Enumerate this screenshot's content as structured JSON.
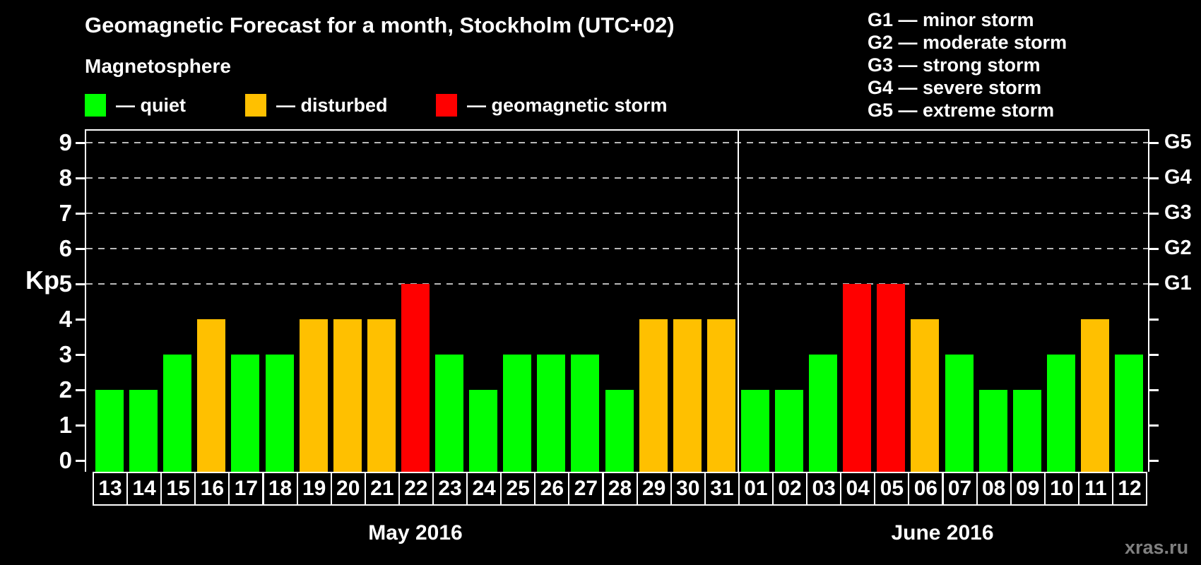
{
  "title": "Geomagnetic Forecast for a month, Stockholm (UTC+02)",
  "subtitle": "Magnetosphere",
  "legend": {
    "items": [
      {
        "key": "quiet",
        "label": "— quiet",
        "color": "#00FF00",
        "x": 120
      },
      {
        "key": "disturbed",
        "label": "— disturbed",
        "color": "#FFC000",
        "x": 347
      },
      {
        "key": "storm",
        "label": "— geomagnetic storm",
        "color": "#FF0000",
        "x": 617
      }
    ]
  },
  "storm_scale_legend": [
    "G1 — minor storm",
    "G2 — moderate storm",
    "G3 — strong storm",
    "G4 — severe storm",
    "G5 — extreme storm"
  ],
  "y_axis": {
    "label": "Kp",
    "ticks": [
      0,
      1,
      2,
      3,
      4,
      5,
      6,
      7,
      8,
      9
    ]
  },
  "right_axis": {
    "labels": [
      {
        "text": "G1",
        "kp": 5
      },
      {
        "text": "G2",
        "kp": 6
      },
      {
        "text": "G3",
        "kp": 7
      },
      {
        "text": "G4",
        "kp": 8
      },
      {
        "text": "G5",
        "kp": 9
      }
    ]
  },
  "watermark": "xras.ru",
  "chart_data": {
    "type": "bar",
    "title": "Geomagnetic Forecast for a month, Stockholm (UTC+02)",
    "ylabel": "Kp",
    "ylim": [
      0,
      9
    ],
    "gridlines_at_kp": [
      5,
      6,
      7,
      8,
      9
    ],
    "legend_position": "top-left",
    "colors": {
      "quiet": "#00FF00",
      "disturbed": "#FFC000",
      "storm": "#FF0000"
    },
    "months": [
      {
        "label": "May 2016",
        "days": [
          {
            "day": "13",
            "kp": 2,
            "status": "quiet"
          },
          {
            "day": "14",
            "kp": 2,
            "status": "quiet"
          },
          {
            "day": "15",
            "kp": 3,
            "status": "quiet"
          },
          {
            "day": "16",
            "kp": 4,
            "status": "disturbed"
          },
          {
            "day": "17",
            "kp": 3,
            "status": "quiet"
          },
          {
            "day": "18",
            "kp": 3,
            "status": "quiet"
          },
          {
            "day": "19",
            "kp": 4,
            "status": "disturbed"
          },
          {
            "day": "20",
            "kp": 4,
            "status": "disturbed"
          },
          {
            "day": "21",
            "kp": 4,
            "status": "disturbed"
          },
          {
            "day": "22",
            "kp": 5,
            "status": "storm"
          },
          {
            "day": "23",
            "kp": 3,
            "status": "quiet"
          },
          {
            "day": "24",
            "kp": 2,
            "status": "quiet"
          },
          {
            "day": "25",
            "kp": 3,
            "status": "quiet"
          },
          {
            "day": "26",
            "kp": 3,
            "status": "quiet"
          },
          {
            "day": "27",
            "kp": 3,
            "status": "quiet"
          },
          {
            "day": "28",
            "kp": 2,
            "status": "quiet"
          },
          {
            "day": "29",
            "kp": 4,
            "status": "disturbed"
          },
          {
            "day": "30",
            "kp": 4,
            "status": "disturbed"
          },
          {
            "day": "31",
            "kp": 4,
            "status": "disturbed"
          }
        ]
      },
      {
        "label": "June 2016",
        "days": [
          {
            "day": "01",
            "kp": 2,
            "status": "quiet"
          },
          {
            "day": "02",
            "kp": 2,
            "status": "quiet"
          },
          {
            "day": "03",
            "kp": 3,
            "status": "quiet"
          },
          {
            "day": "04",
            "kp": 5,
            "status": "storm"
          },
          {
            "day": "05",
            "kp": 5,
            "status": "storm"
          },
          {
            "day": "06",
            "kp": 4,
            "status": "disturbed"
          },
          {
            "day": "07",
            "kp": 3,
            "status": "quiet"
          },
          {
            "day": "08",
            "kp": 2,
            "status": "quiet"
          },
          {
            "day": "09",
            "kp": 2,
            "status": "quiet"
          },
          {
            "day": "10",
            "kp": 3,
            "status": "quiet"
          },
          {
            "day": "11",
            "kp": 4,
            "status": "disturbed"
          },
          {
            "day": "12",
            "kp": 3,
            "status": "quiet"
          }
        ]
      }
    ]
  }
}
